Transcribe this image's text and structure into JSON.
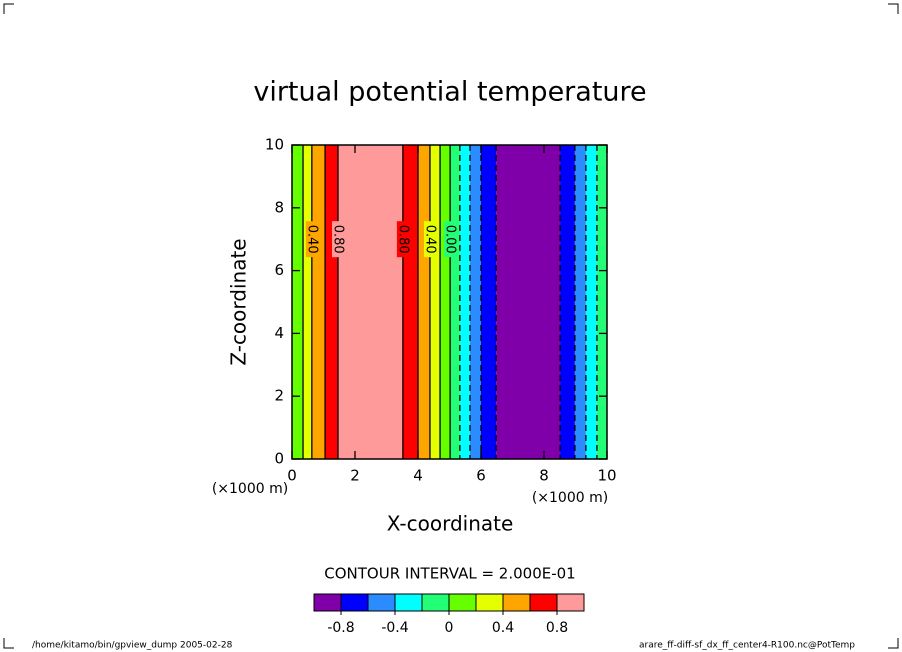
{
  "chart_data": {
    "type": "contour",
    "title": "virtual potential temperature",
    "xlabel": "X-coordinate",
    "ylabel": "Z-coordinate",
    "x_unit": "(×1000 m)",
    "xlim": [
      0,
      10
    ],
    "xticks": [
      0,
      2,
      4,
      6,
      8,
      10
    ],
    "ylim": [
      0,
      10
    ],
    "yticks": [
      0,
      2,
      4,
      6,
      8,
      10
    ],
    "bands": [
      {
        "from": 0,
        "to": 0.35,
        "low": 0
      },
      {
        "from": 0.35,
        "to": 0.63,
        "low": 0.2
      },
      {
        "from": 0.63,
        "to": 1.05,
        "low": 0.4
      },
      {
        "from": 1.05,
        "to": 1.46,
        "low": 0.6
      },
      {
        "from": 1.46,
        "to": 3.52,
        "low": 0.8
      },
      {
        "from": 3.52,
        "to": 4.0,
        "low": 0.6
      },
      {
        "from": 4.0,
        "to": 4.38,
        "low": 0.4
      },
      {
        "from": 4.38,
        "to": 4.7,
        "low": 0.2
      },
      {
        "from": 4.7,
        "to": 5.02,
        "low": 0
      },
      {
        "from": 5.02,
        "to": 5.33,
        "low": -0.2
      },
      {
        "from": 5.33,
        "to": 5.65,
        "low": -0.4
      },
      {
        "from": 5.65,
        "to": 6.0,
        "low": -0.6
      },
      {
        "from": 6.0,
        "to": 6.48,
        "low": -0.8
      },
      {
        "from": 6.48,
        "to": 8.51,
        "low": -1.0
      },
      {
        "from": 8.51,
        "to": 8.98,
        "low": -0.8
      },
      {
        "from": 8.98,
        "to": 9.33,
        "low": -0.6
      },
      {
        "from": 9.33,
        "to": 9.68,
        "low": -0.4
      },
      {
        "from": 9.68,
        "to": 10,
        "low": -0.2
      }
    ],
    "contour_labels": [
      {
        "x": 0.63,
        "y": 7,
        "label": "0.40"
      },
      {
        "x": 1.46,
        "y": 7,
        "label": "0.80"
      },
      {
        "x": 3.52,
        "y": 7,
        "label": "0.80"
      },
      {
        "x": 4.38,
        "y": 7,
        "label": "0.40"
      },
      {
        "x": 5.02,
        "y": 7,
        "label": "0.00"
      }
    ],
    "contour_interval": "CONTOUR INTERVAL = 2.000E-01",
    "levels": [
      -1.0,
      -0.8,
      -0.6,
      -0.4,
      -0.2,
      0,
      0.2,
      0.4,
      0.6,
      0.8,
      1.0
    ],
    "colors": [
      "#7f00a8",
      "#0000ff",
      "#2a8cff",
      "#00ffff",
      "#22ff77",
      "#66ff00",
      "#e4ff00",
      "#ffa500",
      "#ff0000",
      "#ff9a9a"
    ],
    "colorbar_ticks": [
      -0.8,
      -0.4,
      0,
      0.4,
      0.8
    ],
    "footer_left": "/home/kitamo/bin/gpview_dump  2005-02-28",
    "footer_right": "arare_ff-diff-sf_dx_ff_center4-R100.nc@PotTemp"
  }
}
